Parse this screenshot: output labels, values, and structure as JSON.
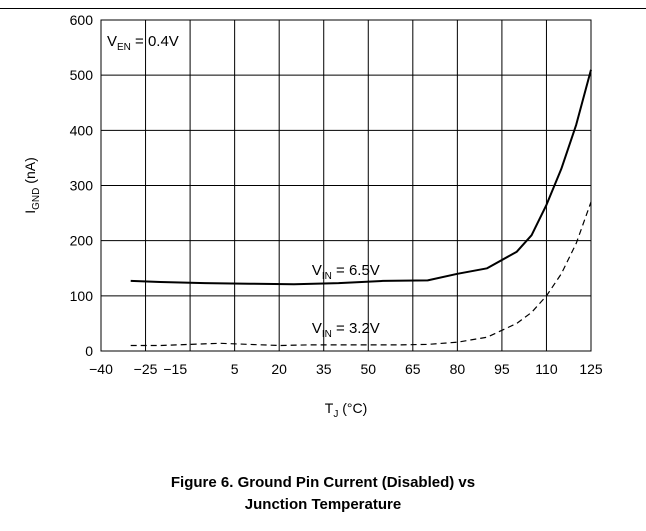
{
  "chart_data": {
    "type": "line",
    "xlabel": {
      "main": "T",
      "sub": "J",
      "suffix": " (°C)"
    },
    "ylabel": {
      "main": "I",
      "sub": "GND",
      "suffix": " (nA)"
    },
    "xlim": [
      -40,
      125
    ],
    "ylim": [
      0,
      600
    ],
    "xticks": [
      -40,
      -25,
      -15,
      5,
      20,
      35,
      50,
      65,
      80,
      95,
      110,
      125
    ],
    "xtick_labels": [
      "−40",
      "−25",
      "−15",
      "5",
      "20",
      "35",
      "50",
      "65",
      "80",
      "95",
      "110",
      "125"
    ],
    "xgrid": [
      -25,
      -10,
      5,
      20,
      35,
      50,
      65,
      80,
      95,
      110,
      125
    ],
    "yticks": [
      0,
      100,
      200,
      300,
      400,
      500,
      600
    ],
    "ytick_labels": [
      "0",
      "100",
      "200",
      "300",
      "400",
      "500",
      "600"
    ],
    "grid": true,
    "series": [
      {
        "id": "vin65",
        "style": "solid",
        "x": [
          -30,
          -20,
          -5,
          10,
          25,
          40,
          55,
          70,
          80,
          90,
          100,
          105,
          110,
          115,
          120,
          125
        ],
        "y": [
          127,
          125,
          123,
          122,
          121,
          123,
          127,
          128,
          140,
          150,
          180,
          210,
          265,
          330,
          410,
          510
        ]
      },
      {
        "id": "vin32",
        "style": "dashed",
        "x": [
          -30,
          -20,
          -10,
          0,
          10,
          20,
          30,
          40,
          50,
          60,
          70,
          80,
          90,
          100,
          105,
          110,
          115,
          120,
          125
        ],
        "y": [
          10,
          10,
          12,
          14,
          12,
          10,
          11,
          11,
          11,
          11,
          12,
          16,
          25,
          50,
          70,
          100,
          140,
          195,
          270
        ]
      }
    ],
    "annotations": [
      {
        "id": "ven",
        "main": "V",
        "sub": "EN",
        "suffix": " = 0.4V",
        "x": -38,
        "y": 553
      },
      {
        "id": "vin65",
        "main": "V",
        "sub": "IN",
        "suffix": " = 6.5V",
        "x": 31,
        "y": 138
      },
      {
        "id": "vin32",
        "main": "V",
        "sub": "IN",
        "suffix": " = 3.2V",
        "x": 31,
        "y": 33
      }
    ]
  },
  "caption": {
    "line1": "Figure 6. Ground Pin Current (Disabled) vs",
    "line2": "Junction Temperature"
  },
  "colors": {
    "line": "#000000",
    "grid": "#000000",
    "background": "#ffffff"
  }
}
